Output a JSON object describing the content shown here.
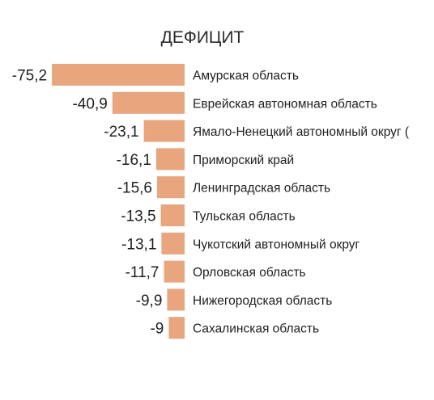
{
  "chart_data": {
    "type": "bar",
    "orientation": "horizontal",
    "title": "ДЕФИЦИТ",
    "categories": [
      "Амурская область",
      "Еврейская автономная область",
      "Ямало-Ненецкий автономный округ (",
      "Приморский край",
      "Ленинградская область",
      "Тульская область",
      "Чукотский автономный округ",
      "Орловская область",
      "Нижегородская область",
      "Сахалинская область"
    ],
    "values": [
      -75.2,
      -40.9,
      -23.1,
      -16.1,
      -15.6,
      -13.5,
      -13.1,
      -11.7,
      -9.9,
      -9
    ],
    "value_labels": [
      "-75,2",
      "-40,9",
      "-23,1",
      "-16,1",
      "-15,6",
      "-13,5",
      "-13,1",
      "-11,7",
      "-9,9",
      "-9"
    ],
    "bar_color": "#e8a57e",
    "xlabel": "",
    "ylabel": "",
    "grid": false,
    "legend": "none"
  }
}
